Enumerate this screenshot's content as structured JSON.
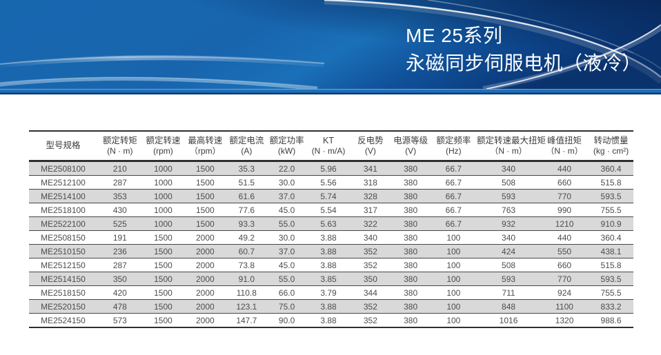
{
  "banner": {
    "title": "ME 25系列",
    "subtitle": "永磁同步伺服电机（液冷）",
    "colors": {
      "banner_blue": "#1767af",
      "banner_dark_navy": "#07245a",
      "strip_blue": "#1e6fb8",
      "strip_bottom_line": "#0d3a70",
      "title_text": "#ffffff"
    }
  },
  "table": {
    "columns": [
      {
        "name": "型号规格",
        "unit": ""
      },
      {
        "name": "额定转矩",
        "unit": "(N · m)"
      },
      {
        "name": "额定转速",
        "unit": "(rpm)"
      },
      {
        "name": "最高转速",
        "unit": "（rpm）"
      },
      {
        "name": "额定电流",
        "unit": "(A)"
      },
      {
        "name": "额定功率",
        "unit": "(kW)"
      },
      {
        "name": "KT",
        "unit": "(N · m/A)"
      },
      {
        "name": "反电势",
        "unit": "(V)"
      },
      {
        "name": "电源等级",
        "unit": "(V)"
      },
      {
        "name": "额定频率",
        "unit": "(Hz)"
      },
      {
        "name": "额定转速最大扭矩",
        "unit": "（N · m）"
      },
      {
        "name": "峰值扭矩",
        "unit": "（N · m）"
      },
      {
        "name": "转动惯量",
        "unit": "(kg · cm²)"
      }
    ],
    "rows": [
      [
        "ME2508100",
        "210",
        "1000",
        "1500",
        "35.3",
        "22.0",
        "5.96",
        "341",
        "380",
        "66.7",
        "340",
        "440",
        "360.4"
      ],
      [
        "ME2512100",
        "287",
        "1000",
        "1500",
        "51.5",
        "30.0",
        "5.56",
        "318",
        "380",
        "66.7",
        "508",
        "660",
        "515.8"
      ],
      [
        "ME2514100",
        "353",
        "1000",
        "1500",
        "61.6",
        "37.0",
        "5.74",
        "328",
        "380",
        "66.7",
        "593",
        "770",
        "593.5"
      ],
      [
        "ME2518100",
        "430",
        "1000",
        "1500",
        "77.6",
        "45.0",
        "5.54",
        "317",
        "380",
        "66.7",
        "763",
        "990",
        "755.5"
      ],
      [
        "ME2522100",
        "525",
        "1000",
        "1500",
        "93.3",
        "55.0",
        "5.63",
        "322",
        "380",
        "66.7",
        "932",
        "1210",
        "910.9"
      ],
      [
        "ME2508150",
        "191",
        "1500",
        "2000",
        "49.2",
        "30.0",
        "3.88",
        "340",
        "380",
        "100",
        "340",
        "440",
        "360.4"
      ],
      [
        "ME2510150",
        "236",
        "1500",
        "2000",
        "60.7",
        "37.0",
        "3.88",
        "352",
        "380",
        "100",
        "424",
        "550",
        "438.1"
      ],
      [
        "ME2512150",
        "287",
        "1500",
        "2000",
        "73.8",
        "45.0",
        "3.88",
        "352",
        "380",
        "100",
        "508",
        "660",
        "515.8"
      ],
      [
        "ME2514150",
        "350",
        "1500",
        "2000",
        "91.0",
        "55.0",
        "3.85",
        "350",
        "380",
        "100",
        "593",
        "770",
        "593.5"
      ],
      [
        "ME2518150",
        "420",
        "1500",
        "2000",
        "110.8",
        "66.0",
        "3.79",
        "344",
        "380",
        "100",
        "711",
        "924",
        "755.5"
      ],
      [
        "ME2520150",
        "478",
        "1500",
        "2000",
        "123.1",
        "75.0",
        "3.88",
        "352",
        "380",
        "100",
        "848",
        "1100",
        "833.2"
      ],
      [
        "ME2524150",
        "573",
        "1500",
        "2000",
        "147.7",
        "90.0",
        "3.88",
        "352",
        "380",
        "100",
        "1016",
        "1320",
        "988.6"
      ]
    ]
  }
}
